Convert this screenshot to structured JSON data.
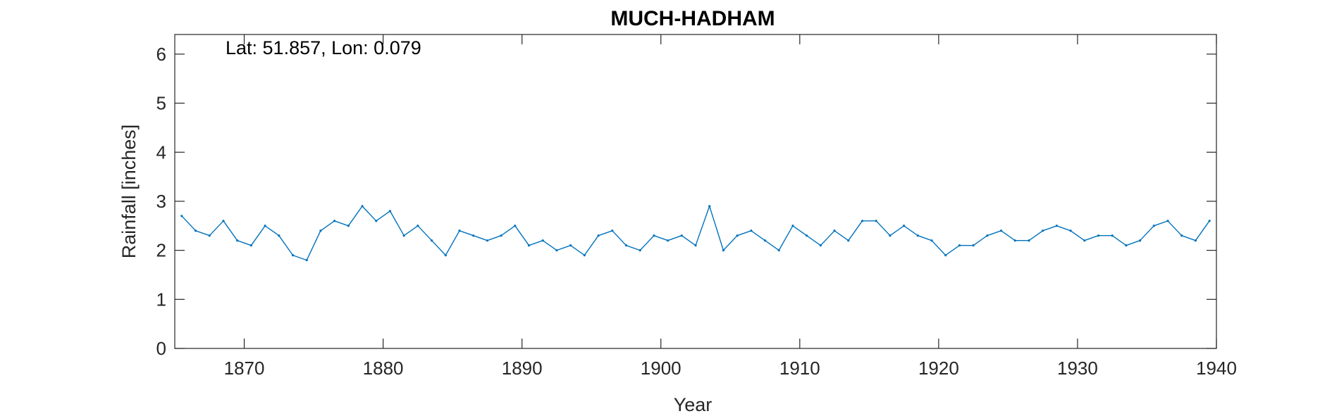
{
  "chart_data": {
    "type": "line",
    "title": "MUCH-HADHAM",
    "annotation": "Lat: 51.857, Lon: 0.079",
    "xlabel": "Year",
    "ylabel": "Rainfall [inches]",
    "xlim": [
      1865,
      1940
    ],
    "ylim": [
      0,
      6.4
    ],
    "xticks": [
      1870,
      1880,
      1890,
      1900,
      1910,
      1920,
      1930,
      1940
    ],
    "yticks": [
      0,
      1,
      2,
      3,
      4,
      5,
      6
    ],
    "grid": false,
    "line_color": "#0072BD",
    "series": [
      {
        "x": [
          1865.5,
          1866.5,
          1867.5,
          1868.5,
          1869.5,
          1870.5,
          1871.5,
          1872.5,
          1873.5,
          1874.5,
          1875.5,
          1876.5,
          1877.5,
          1878.5,
          1879.5,
          1880.5,
          1881.5,
          1882.5,
          1883.5,
          1884.5,
          1885.5,
          1886.5,
          1887.5,
          1888.5,
          1889.5,
          1890.5,
          1891.5,
          1892.5,
          1893.5,
          1894.5,
          1895.5,
          1896.5,
          1897.5,
          1898.5,
          1899.5,
          1900.5,
          1901.5,
          1902.5,
          1903.5,
          1904.5,
          1905.5,
          1906.5,
          1907.5,
          1908.5,
          1909.5,
          1910.5,
          1911.5,
          1912.5,
          1913.5,
          1914.5,
          1915.5,
          1916.5,
          1917.5,
          1918.5,
          1919.5,
          1920.5,
          1921.5,
          1922.5,
          1923.5,
          1924.5,
          1925.5,
          1926.5,
          1927.5,
          1928.5,
          1929.5,
          1930.5,
          1931.5,
          1932.5,
          1933.5,
          1934.5,
          1935.5,
          1936.5,
          1937.5,
          1938.5,
          1939.5
        ],
        "y": [
          2.7,
          2.4,
          2.3,
          2.6,
          2.2,
          2.1,
          2.5,
          2.3,
          1.9,
          1.8,
          2.4,
          2.6,
          2.5,
          2.9,
          2.6,
          2.8,
          2.3,
          2.5,
          2.2,
          1.9,
          2.4,
          2.3,
          2.2,
          2.3,
          2.5,
          2.1,
          2.2,
          2.0,
          2.1,
          1.9,
          2.3,
          2.4,
          2.1,
          2.0,
          2.3,
          2.2,
          2.3,
          2.1,
          2.9,
          2.0,
          2.3,
          2.4,
          2.2,
          2.0,
          2.5,
          2.3,
          2.1,
          2.4,
          2.2,
          2.6,
          2.6,
          2.3,
          2.5,
          2.3,
          2.2,
          1.9,
          2.1,
          2.1,
          2.3,
          2.4,
          2.2,
          2.2,
          2.4,
          2.5,
          2.4,
          2.2,
          2.3,
          2.3,
          2.1,
          2.2,
          2.5,
          2.6,
          2.3,
          2.2,
          2.6
        ]
      }
    ]
  }
}
